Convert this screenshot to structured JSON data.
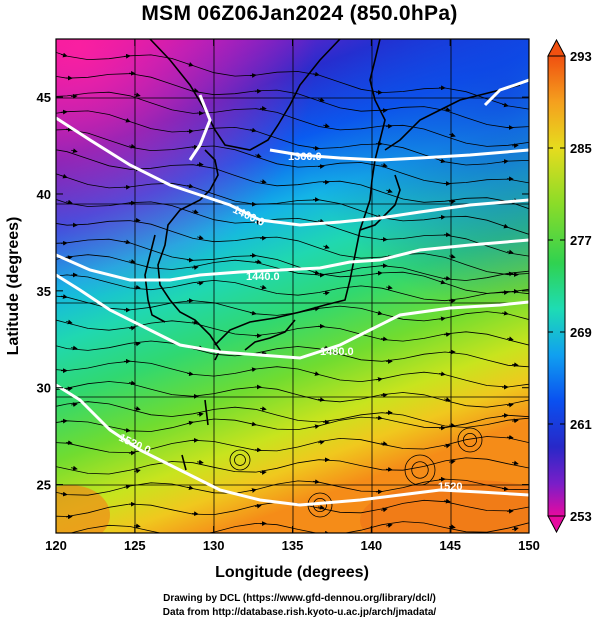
{
  "title": "MSM 06Z06Jan2024 (850.0hPa)",
  "x_axis": {
    "label": "Longitude (degrees)",
    "ticks": [
      "120",
      "125",
      "130",
      "135",
      "140",
      "145",
      "150"
    ],
    "range": [
      120,
      150
    ]
  },
  "y_axis": {
    "label": "Latitude  (degrees)",
    "ticks": [
      "25",
      "30",
      "35",
      "40",
      "45"
    ],
    "range": [
      22.5,
      48
    ]
  },
  "colorbar": {
    "ticks": [
      "293",
      "285",
      "277",
      "269",
      "261",
      "253"
    ],
    "range": [
      253,
      293
    ],
    "colors": [
      "#e60aa0",
      "#7a1ec8",
      "#2c2ccd",
      "#0a5af0",
      "#10a0f0",
      "#18d2d2",
      "#1edc8c",
      "#3cd23c",
      "#8cdc28",
      "#c8e61e",
      "#f0d21e",
      "#f5a01e",
      "#f0640f"
    ]
  },
  "contour_labels": [
    "1360.0",
    "1400.0",
    "1440.0",
    "1480.0",
    "1520.0",
    "1520"
  ],
  "footer": {
    "line1": "Drawing by DCL (https://www.gfd-dennou.org/library/dcl/)",
    "line2": "Data from http://database.rish.kyoto-u.ac.jp/arch/jmadata/"
  }
}
